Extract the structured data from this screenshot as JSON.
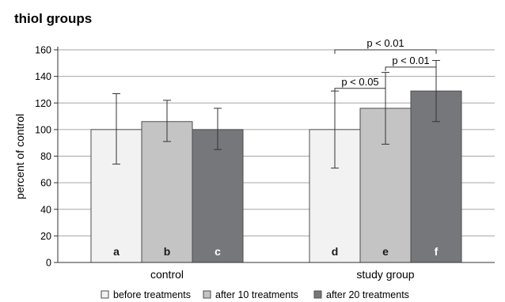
{
  "chart_data": {
    "type": "bar",
    "title": "thiol groups",
    "xlabel": "",
    "ylabel": "percent of control",
    "ylim": [
      0,
      160
    ],
    "yticks": [
      0,
      20,
      40,
      60,
      80,
      100,
      120,
      140,
      160
    ],
    "grid": true,
    "legend_position": "bottom",
    "categories": [
      "control",
      "study group"
    ],
    "series": [
      {
        "name": "before treatments",
        "color": "#f2f2f2",
        "values": [
          100,
          100
        ],
        "err_low": [
          74,
          71
        ],
        "err_high": [
          127,
          129
        ],
        "bar_labels": [
          "a",
          "d"
        ]
      },
      {
        "name": "after 10 treatments",
        "color": "#c4c4c4",
        "values": [
          106,
          116
        ],
        "err_low": [
          91,
          89
        ],
        "err_high": [
          122,
          143
        ],
        "bar_labels": [
          "b",
          "e"
        ]
      },
      {
        "name": "after 20 treatments",
        "color": "#76777b",
        "values": [
          100,
          129
        ],
        "err_low": [
          85,
          106
        ],
        "err_high": [
          116,
          152
        ],
        "bar_labels": [
          "c",
          "f"
        ]
      }
    ],
    "annotations": [
      {
        "text": "p < 0.05",
        "category": 1,
        "from_series": 0,
        "to_series": 1,
        "level": 131
      },
      {
        "text": "p < 0.01",
        "category": 1,
        "from_series": 1,
        "to_series": 2,
        "level": 147
      },
      {
        "text": "p < 0.01",
        "category": 1,
        "from_series": 0,
        "to_series": 2,
        "level": 160
      }
    ]
  }
}
